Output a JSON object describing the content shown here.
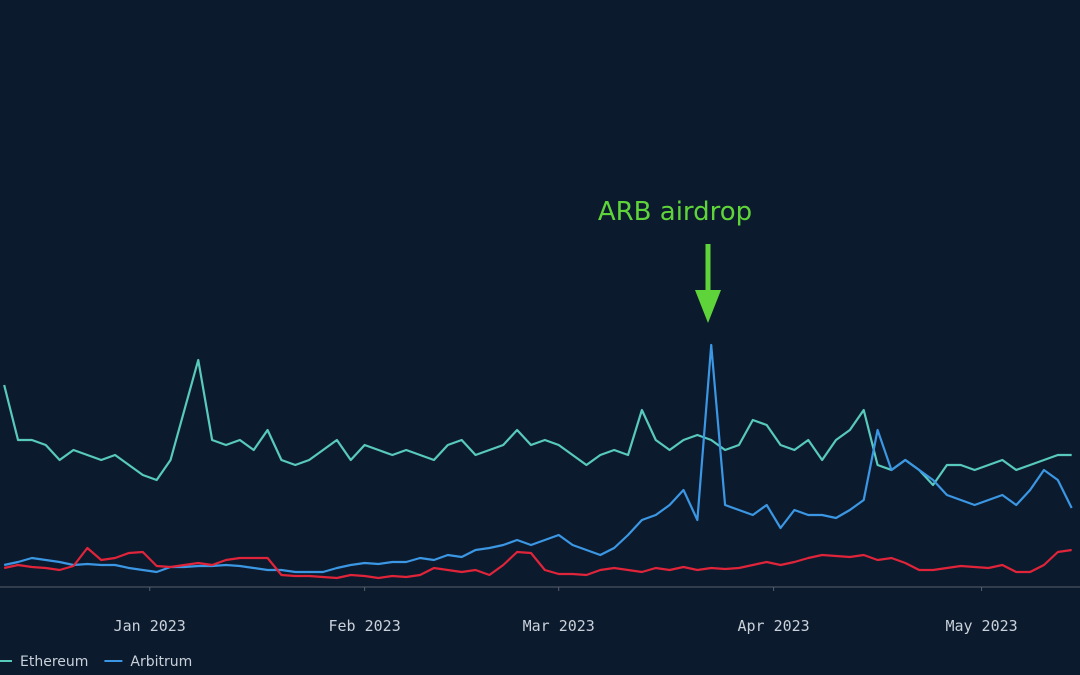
{
  "chart_data": {
    "type": "line",
    "annotation": "ARB airdrop",
    "x": [
      -21,
      -19,
      -17,
      -15,
      -13,
      -11,
      -9,
      -7,
      -5,
      -3,
      -1,
      1,
      3,
      5,
      7,
      9,
      11,
      13,
      15,
      17,
      19,
      21,
      23,
      25,
      27,
      29,
      31,
      33,
      35,
      37,
      39,
      41,
      43,
      45,
      47,
      49,
      51,
      53,
      55,
      57,
      59,
      61,
      63,
      65,
      67,
      69,
      71,
      73,
      75,
      77,
      79,
      81,
      83,
      85,
      87,
      89,
      91,
      93,
      95,
      97,
      99,
      101,
      103,
      105,
      107,
      109,
      111,
      113,
      115,
      117,
      119,
      121,
      123,
      125,
      127,
      129,
      131,
      133
    ],
    "xlim": [
      -21.6,
      134.2
    ],
    "xticks": [
      {
        "value": 0,
        "label": "Jan 2023"
      },
      {
        "value": 31,
        "label": "Feb 2023"
      },
      {
        "value": 59,
        "label": "Mar 2023"
      },
      {
        "value": 90,
        "label": "Apr 2023"
      },
      {
        "value": 120,
        "label": "May 2023"
      }
    ],
    "ylim": [
      0,
      587
    ],
    "series": [
      {
        "name": "Ethereum",
        "color": "#58c9bd",
        "values": [
          202,
          147,
          147,
          142,
          127,
          137,
          132,
          127,
          132,
          122,
          112,
          107,
          127,
          177,
          227,
          147,
          142,
          147,
          137,
          157,
          127,
          122,
          127,
          137,
          147,
          127,
          142,
          137,
          132,
          137,
          132,
          127,
          142,
          147,
          132,
          137,
          142,
          157,
          142,
          147,
          142,
          132,
          122,
          132,
          137,
          132,
          177,
          147,
          137,
          147,
          152,
          147,
          137,
          142,
          167,
          162,
          142,
          137,
          147,
          127,
          147,
          157,
          177,
          122,
          117,
          127,
          117,
          102,
          122,
          122,
          117,
          122,
          127,
          117,
          122,
          127,
          132,
          132
        ]
      },
      {
        "name": "Arbitrum",
        "color": "#3b97e3",
        "values": [
          22,
          25,
          29,
          27,
          25,
          22,
          23,
          22,
          22,
          19,
          17,
          15,
          20,
          20,
          21,
          21,
          22,
          21,
          19,
          17,
          17,
          15,
          15,
          15,
          19,
          22,
          24,
          23,
          25,
          25,
          29,
          27,
          32,
          30,
          37,
          39,
          42,
          47,
          42,
          47,
          52,
          42,
          37,
          32,
          39,
          52,
          67,
          72,
          82,
          97,
          67,
          242,
          82,
          77,
          72,
          82,
          59,
          77,
          72,
          72,
          69,
          77,
          87,
          157,
          117,
          127,
          117,
          107,
          92,
          87,
          82,
          87,
          92,
          82,
          97,
          117,
          107,
          79
        ]
      },
      {
        "color": "#e0243a",
        "values": [
          19,
          22,
          20,
          19,
          17,
          21,
          39,
          27,
          29,
          34,
          35,
          21,
          20,
          22,
          24,
          22,
          27,
          29,
          29,
          29,
          12,
          11,
          11,
          10,
          9,
          12,
          11,
          9,
          11,
          10,
          12,
          19,
          17,
          15,
          17,
          12,
          22,
          35,
          34,
          17,
          13,
          13,
          12,
          17,
          19,
          17,
          15,
          19,
          17,
          20,
          17,
          19,
          18,
          19,
          22,
          25,
          22,
          25,
          29,
          32,
          31,
          30,
          32,
          27,
          29,
          24,
          17,
          17,
          19,
          21,
          20,
          19,
          22,
          15,
          15,
          22,
          35,
          37
        ]
      }
    ]
  }
}
